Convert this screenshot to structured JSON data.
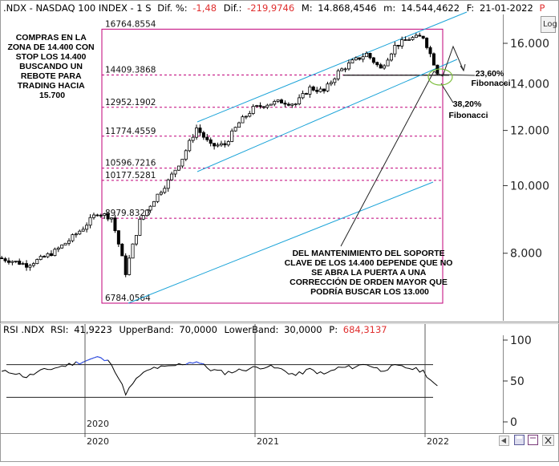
{
  "header": {
    "symbol": ".NDX - NASDAQ 100 INDEX -  1 S",
    "dif_pct_label": "Dif. %:",
    "dif_pct_value": "-1,48",
    "dif_label": "Dif.:",
    "dif_value": "-219,9746",
    "max_label": "M:",
    "max_value": "14.868,4546",
    "min_label": "m:",
    "min_value": "14.544,4622",
    "date_label": "F:",
    "date_value": "21-01-2022",
    "p_marker": "P"
  },
  "rsi_header": {
    "name": "RSI .NDX",
    "rsi_label": "RSI:",
    "rsi_value": "41,9223",
    "upper_label": "UpperBand:",
    "upper_value": "70,0000",
    "lower_label": "LowerBand:",
    "lower_value": "30,0000",
    "p_label": "P:",
    "p_value": "684,3137"
  },
  "buttons": {
    "log_label": "Log"
  },
  "annotations": {
    "left_note": [
      "COMPRAS EN LA",
      "ZONA DE 14.400 CON",
      "STOP LOS 14.400",
      "BUSCANDO UN",
      "REBOTE PARA",
      "TRADING HACIA",
      "15.700"
    ],
    "bottom_note": [
      "DEL MANTENIMIENTO DEL SOPORTE",
      "CLAVE DE LOS 14.400 DEPENDE QUE NO",
      "SE ABRA LA PUERTA A UNA",
      "CORRECCIÓN DE ORDEN MAYOR QUE",
      "PODRÍA BUSCAR LOS 13.000"
    ],
    "fib_2360": [
      "23,60%",
      "Fibonacci"
    ],
    "fib_3820": [
      "38,20%",
      "Fibonacci"
    ]
  },
  "colors": {
    "fib_box": "#c0007a",
    "channel": "#1aa3d8",
    "candle": "#000000",
    "rsi_line": "#000000",
    "rsi_over": "#3355ff",
    "ellipse": "#7fbf3f",
    "neg": "#e03030"
  },
  "chart_data": [
    {
      "type": "candlestick",
      "title": ".NDX - NASDAQ 100 INDEX - 1 S",
      "scale": "log",
      "ylim": [
        6400,
        17600
      ],
      "y_ticks": [
        8000,
        10000,
        12000,
        14000,
        16000
      ],
      "y_tick_labels": [
        "8.000",
        "10.000",
        "12.000",
        "14.000",
        "16.000"
      ],
      "x_tick_labels": [
        "2020",
        "2021",
        "2022"
      ],
      "fib_levels": [
        16764.8554,
        14409.3868,
        12952.1902,
        11774.4559,
        10596.7216,
        10177.5281,
        8979.8323,
        6784.0564
      ],
      "fib_level_labels": [
        "16764.8554",
        "14409.3868",
        "12952.1902",
        "11774.4559",
        "10596.7216",
        "10177.5281",
        "8979.8323",
        "6784.0564"
      ],
      "x": [
        "2019-07",
        "2019-08",
        "2019-09",
        "2019-10",
        "2019-11",
        "2019-12",
        "2020-01",
        "2020-02",
        "2020-03",
        "2020-04",
        "2020-05",
        "2020-06",
        "2020-07",
        "2020-08",
        "2020-09",
        "2020-10",
        "2020-11",
        "2020-12",
        "2021-01",
        "2021-02",
        "2021-03",
        "2021-04",
        "2021-05",
        "2021-06",
        "2021-07",
        "2021-08",
        "2021-09",
        "2021-10",
        "2021-11",
        "2021-12",
        "2022-01"
      ],
      "close": [
        7800,
        7700,
        7850,
        8050,
        8350,
        8700,
        9150,
        9000,
        7500,
        8900,
        9550,
        10150,
        10950,
        12100,
        11400,
        11450,
        12300,
        12900,
        13100,
        13200,
        13100,
        13800,
        13650,
        14550,
        15050,
        15450,
        14700,
        15850,
        16250,
        16350,
        14550
      ]
    },
    {
      "type": "line",
      "title": "RSI .NDX",
      "ylim": [
        0,
        100
      ],
      "y_ticks": [
        0,
        50,
        100
      ],
      "y_tick_labels": [
        "0",
        "50",
        "100"
      ],
      "bands": [
        70,
        30
      ],
      "x": [
        "2019-07",
        "2019-08",
        "2019-09",
        "2019-10",
        "2019-11",
        "2019-12",
        "2020-01",
        "2020-02",
        "2020-03",
        "2020-04",
        "2020-05",
        "2020-06",
        "2020-07",
        "2020-08",
        "2020-09",
        "2020-10",
        "2020-11",
        "2020-12",
        "2021-01",
        "2021-02",
        "2021-03",
        "2021-04",
        "2021-05",
        "2021-06",
        "2021-07",
        "2021-08",
        "2021-09",
        "2021-10",
        "2021-11",
        "2021-12",
        "2022-01"
      ],
      "values": [
        61,
        55,
        62,
        66,
        70,
        74,
        79,
        72,
        35,
        57,
        66,
        67,
        71,
        74,
        64,
        60,
        63,
        66,
        68,
        64,
        57,
        64,
        58,
        66,
        67,
        71,
        63,
        68,
        66,
        62,
        42
      ],
      "last_value": 41.9223
    }
  ]
}
